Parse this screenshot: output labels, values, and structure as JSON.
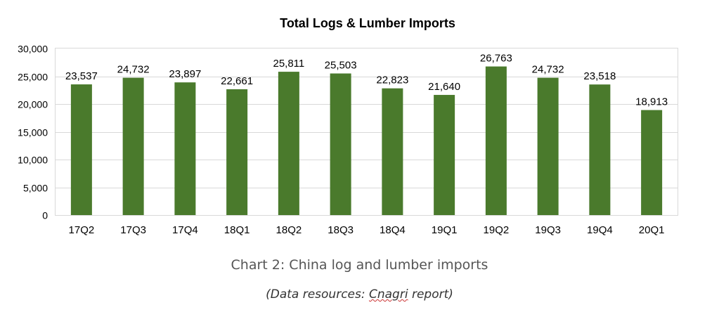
{
  "chart_data": {
    "type": "bar",
    "title": "Total Logs & Lumber Imports",
    "categories": [
      "17Q2",
      "17Q3",
      "17Q4",
      "18Q1",
      "18Q2",
      "18Q3",
      "18Q4",
      "19Q1",
      "19Q2",
      "19Q3",
      "19Q4",
      "20Q1"
    ],
    "values": [
      23537,
      24732,
      23897,
      22661,
      25811,
      25503,
      22823,
      21640,
      26763,
      24732,
      23518,
      18913
    ],
    "value_labels": [
      "23,537",
      "24,732",
      "23,897",
      "22,661",
      "25,811",
      "25,503",
      "22,823",
      "21,640",
      "26,763",
      "24,732",
      "23,518",
      "18,913"
    ],
    "ylim": [
      0,
      30000
    ],
    "yticks": [
      0,
      5000,
      10000,
      15000,
      20000,
      25000,
      30000
    ],
    "ytick_labels": [
      "0",
      "5,000",
      "10,000",
      "15,000",
      "20,000",
      "25,000",
      "30,000"
    ],
    "xlabel": "",
    "ylabel": "",
    "grid": true,
    "legend": "none",
    "bar_color": "#4a7a2c",
    "grid_color": "#d9d9d9"
  },
  "caption": {
    "text": "Chart 2: China log and lumber imports",
    "source_prefix": "(Data resources: ",
    "source_name": "Cnagri",
    "source_suffix": " report)"
  }
}
